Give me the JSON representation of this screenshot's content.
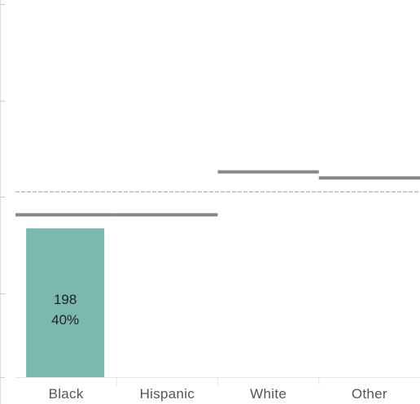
{
  "chart_data": {
    "type": "bar",
    "categories": [
      "Black",
      "Hispanic",
      "White",
      "Other"
    ],
    "series": [
      {
        "values": [
          198,
          null,
          null,
          null
        ],
        "percent_labels": [
          "40%",
          null,
          null,
          null
        ],
        "color": "#7ab8b0"
      }
    ],
    "bar_labels": [
      "198\n40%",
      "",
      "",
      ""
    ],
    "reference_lines": {
      "per_category": [
        216,
        216,
        273,
        265
      ],
      "overall_dashed": 247,
      "color": "#888888"
    },
    "ylim": [
      0,
      500
    ],
    "grid": false,
    "title": "",
    "xlabel": "",
    "ylabel": ""
  }
}
